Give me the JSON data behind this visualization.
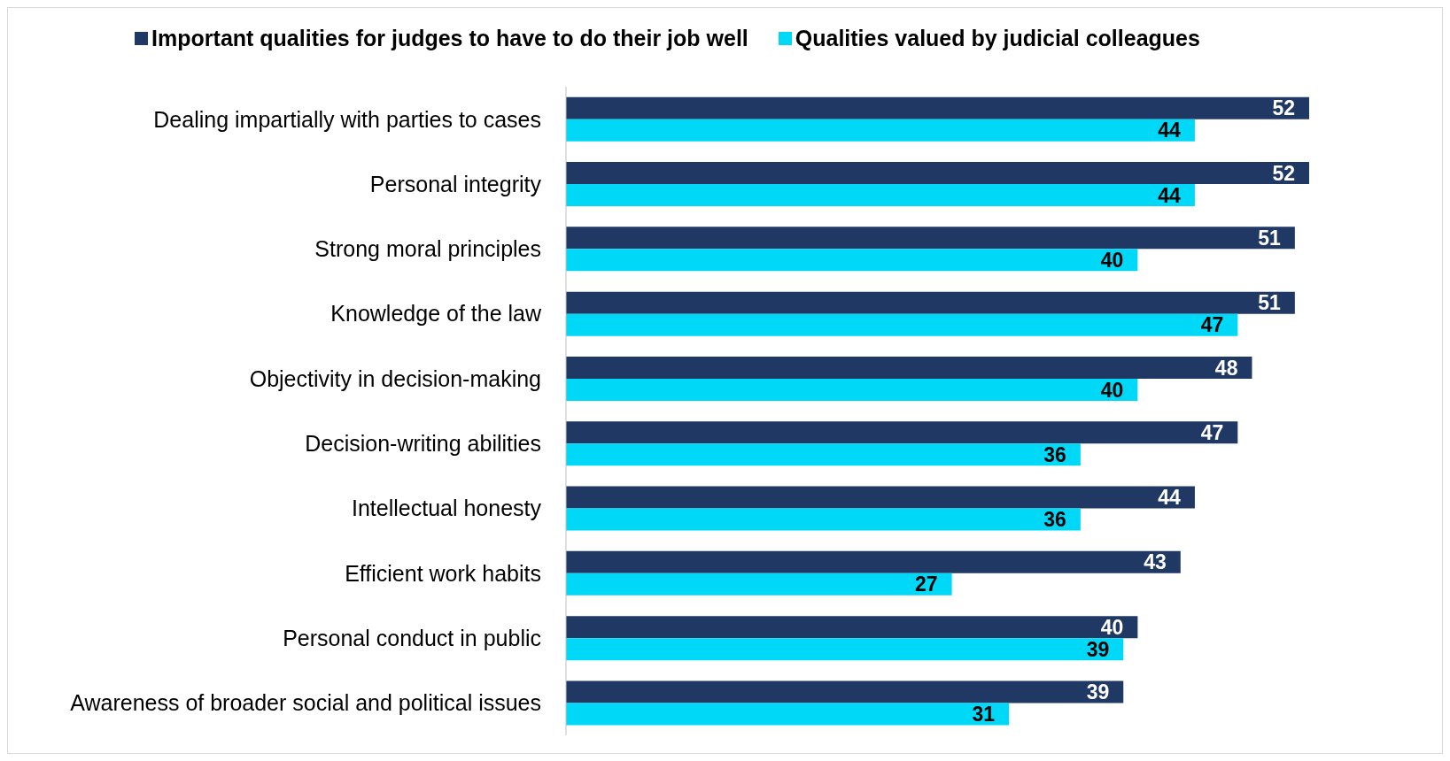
{
  "chart_data": {
    "type": "bar",
    "orientation": "horizontal",
    "categories": [
      "Dealing impartially with parties to cases",
      "Personal integrity",
      "Strong moral principles",
      "Knowledge of the law",
      "Objectivity in decision-making",
      "Decision-writing abilities",
      "Intellectual honesty",
      "Efficient work habits",
      "Personal conduct in public",
      "Awareness of broader social and political issues"
    ],
    "series": [
      {
        "name": "Important qualities for judges to have to do their job well",
        "color": "#203864",
        "values": [
          52,
          52,
          51,
          51,
          48,
          47,
          44,
          43,
          40,
          39
        ]
      },
      {
        "name": "Qualities valued by judicial colleagues",
        "color": "#00d8f8",
        "values": [
          44,
          44,
          40,
          47,
          40,
          36,
          36,
          27,
          39,
          31
        ]
      }
    ],
    "data_labels": true,
    "legend": "top"
  }
}
